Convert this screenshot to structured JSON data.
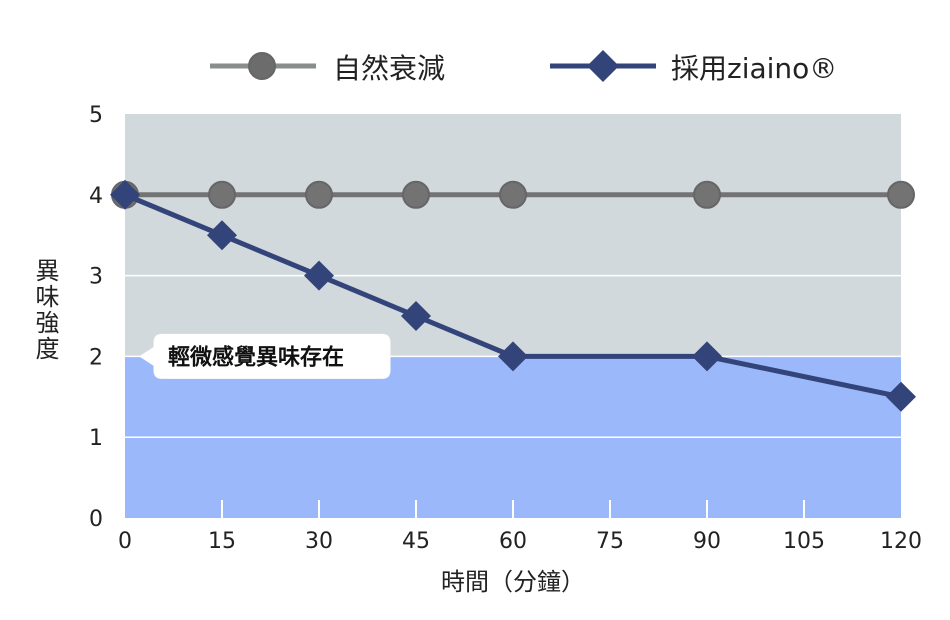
{
  "chart_data": {
    "type": "line",
    "xlabel": "時間（分鐘）",
    "ylabel": "異味強度",
    "x_ticks": [
      0,
      15,
      30,
      45,
      60,
      75,
      90,
      105,
      120
    ],
    "y_ticks": [
      0,
      1,
      2,
      3,
      4,
      5
    ],
    "xlim": [
      0,
      120
    ],
    "ylim": [
      0,
      5
    ],
    "grid": true,
    "legend": "top",
    "bands": [
      {
        "from": 0,
        "to": 2,
        "color": "#9bb8fb"
      },
      {
        "from": 2,
        "to": 5,
        "color": "#d1d9dc"
      }
    ],
    "annotation": {
      "text": "輕微感覺異味存在",
      "y": 2
    },
    "series": [
      {
        "name": "自然衰減",
        "marker": "circle",
        "color": "#737373",
        "x": [
          0,
          15,
          30,
          45,
          60,
          90,
          120
        ],
        "values": [
          4,
          4,
          4,
          4,
          4,
          4,
          4
        ]
      },
      {
        "name": "採用ziaino®",
        "marker": "diamond",
        "color": "#33447a",
        "x": [
          0,
          15,
          30,
          45,
          60,
          90,
          120
        ],
        "values": [
          4,
          3.5,
          3,
          2.5,
          2,
          2,
          1.5
        ]
      }
    ]
  }
}
